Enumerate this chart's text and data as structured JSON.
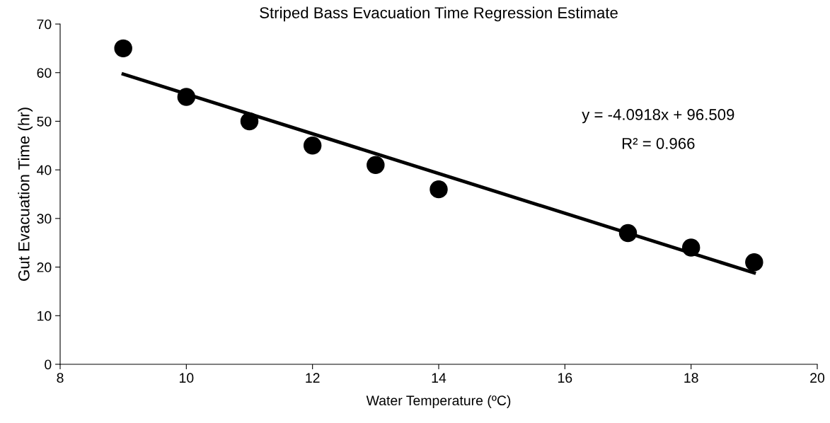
{
  "chart_data": {
    "type": "scatter",
    "title": "Striped Bass Evacuation Time Regression Estimate",
    "xlabel": "Water Temperature (ºC)",
    "ylabel": "Gut Evacuation Time (hr)",
    "series": [
      {
        "color": "#000000",
        "marker": "circle",
        "x": [
          9,
          10,
          11,
          12,
          13,
          14,
          17,
          18,
          19
        ],
        "values": [
          65,
          55,
          50,
          45,
          41,
          36,
          27,
          24,
          21
        ]
      },
      {
        "type": "line",
        "color": "#000000",
        "marker": "none",
        "line_style": "solid",
        "x": [
          9,
          19
        ],
        "values": [
          59.7,
          18.8
        ]
      }
    ],
    "annotations": [
      "y = -4.0918x + 96.509",
      "R² = 0.966"
    ],
    "xlim": [
      8,
      20
    ],
    "xticks": [
      8,
      10,
      12,
      14,
      16,
      18,
      20
    ],
    "ylim": [
      0,
      70
    ],
    "yticks": [
      0,
      10,
      20,
      30,
      40,
      50,
      60,
      70
    ],
    "grid": false,
    "legend": false
  }
}
